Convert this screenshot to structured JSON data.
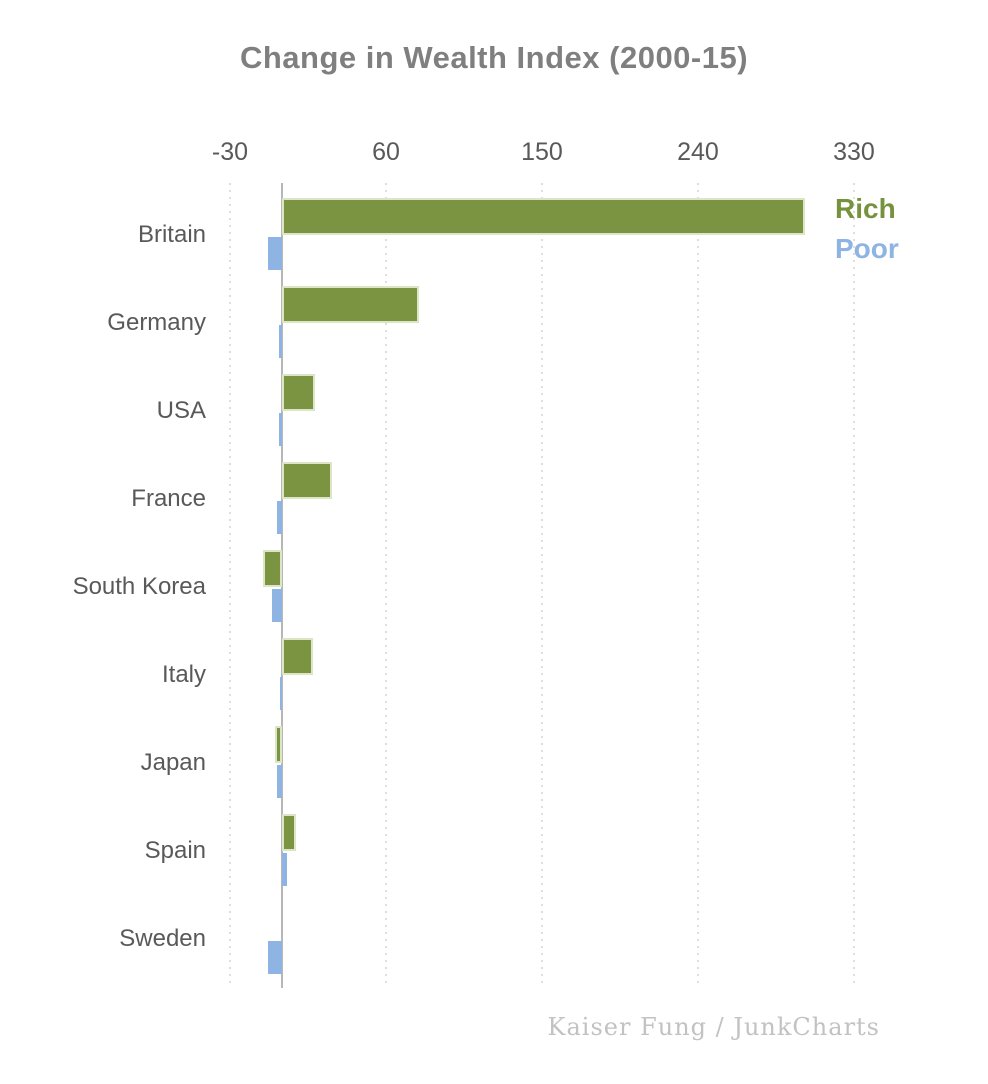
{
  "title": "Change in Wealth Index (2000-15)",
  "footer_credit": "Kaiser Fung / JunkCharts",
  "legend": {
    "position": "top-right",
    "items": [
      {
        "label": "Rich",
        "color": "#76923c"
      },
      {
        "label": "Poor",
        "color": "#8db4e2"
      }
    ]
  },
  "colors": {
    "rich_bar": "#7a9442",
    "rich_bar_border": "#dce6c6",
    "poor_bar": "#8db4e2",
    "axis_line": "#b7b7b7",
    "gridline": "#dedede",
    "title_text": "#7f7f7f",
    "tick_text": "#595959",
    "category_text": "#595959",
    "credit_text": "#c2c2c2"
  },
  "chart_data": {
    "type": "bar",
    "orientation": "horizontal",
    "title": "Change in Wealth Index (2000-15)",
    "xlabel": "",
    "ylabel": "",
    "x_ticks": [
      -30,
      60,
      150,
      240,
      330
    ],
    "xlim": [
      -50,
      390
    ],
    "grid": "vertical-dotted",
    "legend_position": "top-right",
    "categories": [
      "Britain",
      "Germany",
      "USA",
      "France",
      "South Korea",
      "Italy",
      "Japan",
      "Spain",
      "Sweden"
    ],
    "series": [
      {
        "name": "Rich",
        "color": "#7a9442",
        "values": [
          302,
          79,
          19,
          29,
          -11,
          18,
          -4,
          8,
          0
        ]
      },
      {
        "name": "Poor",
        "color": "#8db4e2",
        "values": [
          -8,
          -2,
          -2,
          -3,
          -6,
          -1,
          -3,
          3,
          -8
        ]
      }
    ]
  }
}
